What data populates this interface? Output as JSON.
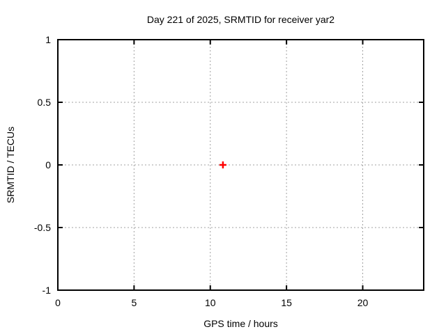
{
  "colors": {
    "background": "#ffffff",
    "border": "#000000",
    "grid": "#a0a0a0",
    "tick": "#000000",
    "text": "#000000",
    "point": "#ff0000"
  },
  "chart_data": {
    "type": "scatter",
    "title": "Day 221 of 2025, SRMTID for receiver yar2",
    "xlabel": "GPS time / hours",
    "ylabel": "SRMTID / TECUs",
    "xlim": [
      0,
      24
    ],
    "ylim": [
      -1,
      1
    ],
    "xticks": [
      0,
      5,
      10,
      15,
      20
    ],
    "xtick_labels": [
      "0",
      "5",
      "10",
      "15",
      "20"
    ],
    "yticks": [
      1,
      0.5,
      0,
      -0.5,
      -1
    ],
    "ytick_labels": [
      "1",
      "0.5",
      "0",
      "-0.5",
      "-1"
    ],
    "grid": true,
    "legend": null,
    "series": [
      {
        "name": "SRMTID",
        "marker": "plus",
        "color": "#ff0000",
        "points": [
          {
            "x": 10.83,
            "y": 0.0
          }
        ]
      }
    ]
  }
}
